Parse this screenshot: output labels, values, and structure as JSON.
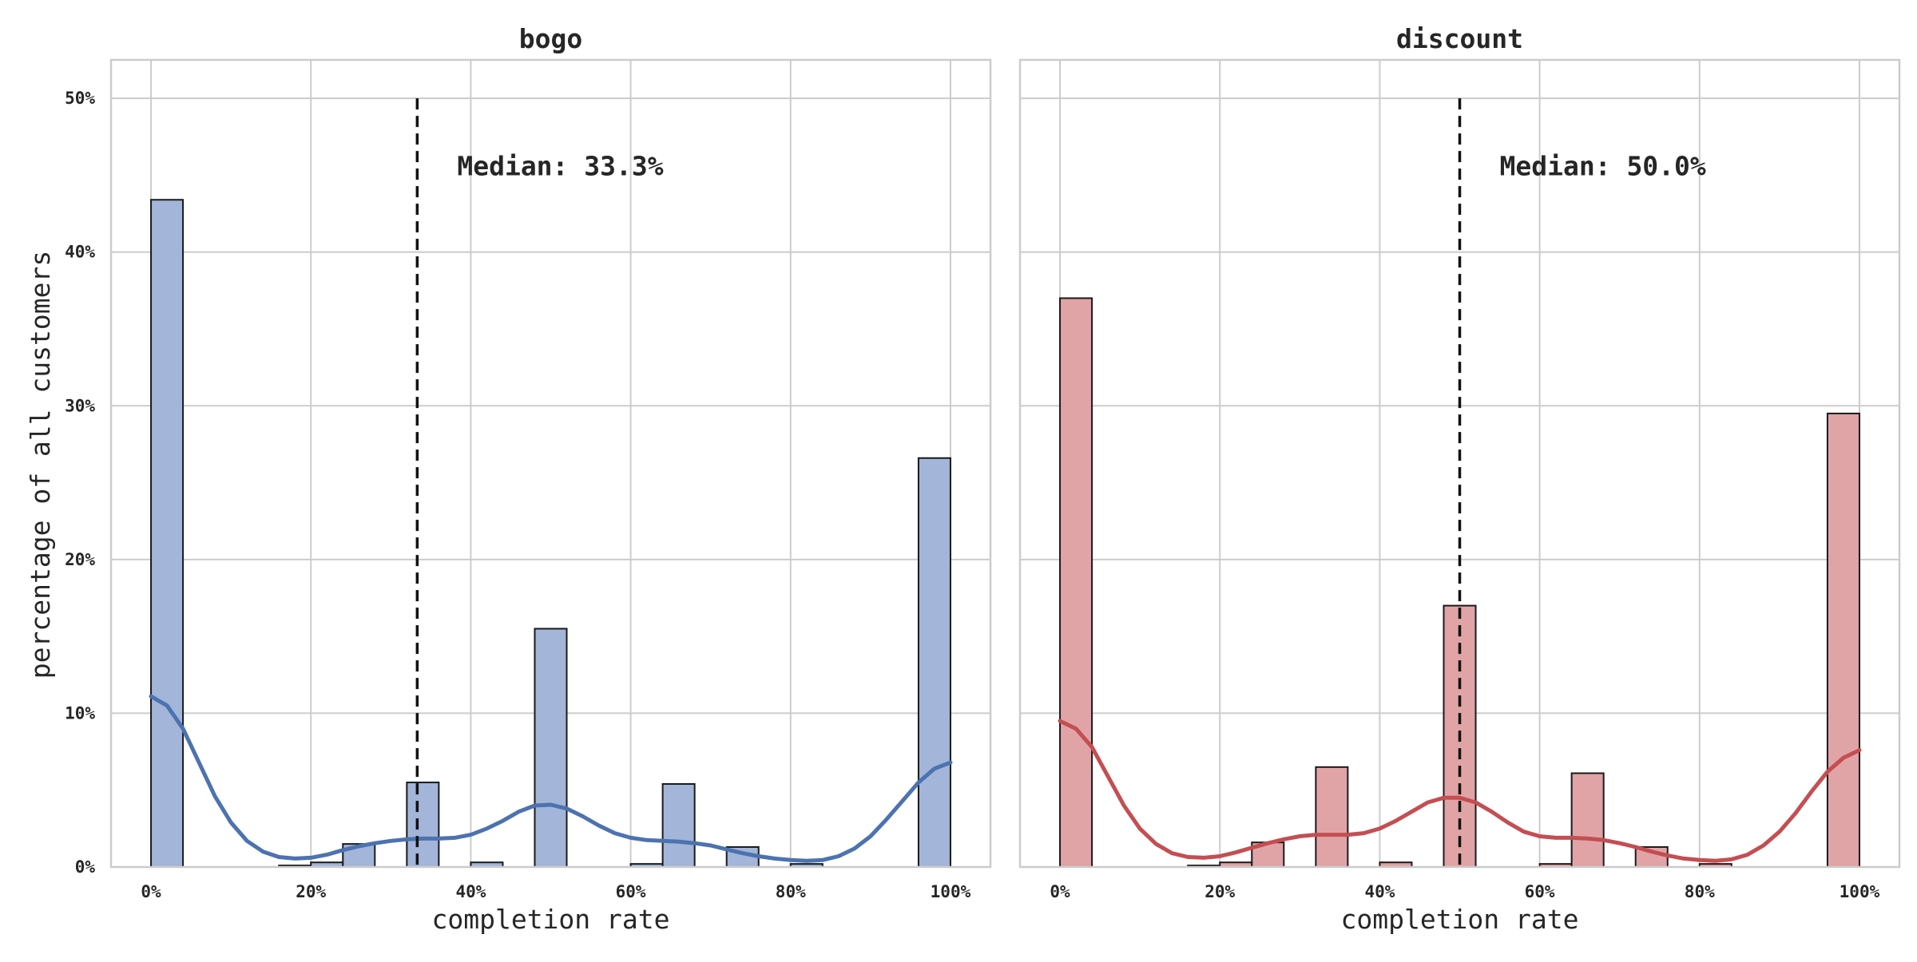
{
  "figure": {
    "ylabel": "percentage of all customers"
  },
  "chart_data": [
    {
      "type": "bar",
      "title": "bogo",
      "xlabel": "completion rate",
      "ylabel": "percentage of all customers",
      "xlim": [
        -5,
        105
      ],
      "ylim": [
        0,
        52.5
      ],
      "xticks": [
        0,
        20,
        40,
        60,
        80,
        100
      ],
      "xtick_labels": [
        "0%",
        "20%",
        "40%",
        "60%",
        "80%",
        "100%"
      ],
      "yticks": [
        0,
        10,
        20,
        30,
        40,
        50
      ],
      "ytick_labels": [
        "0%",
        "10%",
        "20%",
        "30%",
        "40%",
        "50%"
      ],
      "grid": true,
      "bin_width": 4,
      "bar_color": "#a3b5d8",
      "edge_color": "#1a1a1a",
      "bins": [
        {
          "x0": 0,
          "x1": 4,
          "value": 43.4
        },
        {
          "x0": 16,
          "x1": 20,
          "value": 0.1
        },
        {
          "x0": 20,
          "x1": 24,
          "value": 0.3
        },
        {
          "x0": 24,
          "x1": 28,
          "value": 1.5
        },
        {
          "x0": 32,
          "x1": 36,
          "value": 5.5
        },
        {
          "x0": 40,
          "x1": 44,
          "value": 0.3
        },
        {
          "x0": 48,
          "x1": 52,
          "value": 15.5
        },
        {
          "x0": 60,
          "x1": 64,
          "value": 0.2
        },
        {
          "x0": 64,
          "x1": 68,
          "value": 5.4
        },
        {
          "x0": 72,
          "x1": 76,
          "value": 1.3
        },
        {
          "x0": 80,
          "x1": 84,
          "value": 0.2
        },
        {
          "x0": 96,
          "x1": 100,
          "value": 26.6
        }
      ],
      "kde": {
        "color": "#4c72b0",
        "x": [
          0,
          2,
          4,
          6,
          8,
          10,
          12,
          14,
          16,
          18,
          20,
          22,
          24,
          26,
          28,
          30,
          32,
          34,
          36,
          38,
          40,
          42,
          44,
          46,
          48,
          50,
          52,
          54,
          56,
          58,
          60,
          62,
          64,
          66,
          68,
          70,
          72,
          74,
          76,
          78,
          80,
          82,
          84,
          86,
          88,
          90,
          92,
          94,
          96,
          98,
          100
        ],
        "y": [
          11.1,
          10.5,
          9.0,
          6.8,
          4.6,
          2.9,
          1.7,
          1.0,
          0.65,
          0.55,
          0.6,
          0.8,
          1.1,
          1.35,
          1.55,
          1.7,
          1.8,
          1.85,
          1.85,
          1.9,
          2.1,
          2.5,
          3.0,
          3.6,
          4.0,
          4.05,
          3.8,
          3.3,
          2.7,
          2.2,
          1.9,
          1.75,
          1.7,
          1.65,
          1.55,
          1.4,
          1.15,
          0.9,
          0.7,
          0.55,
          0.45,
          0.4,
          0.45,
          0.7,
          1.2,
          2.0,
          3.1,
          4.3,
          5.5,
          6.4,
          6.8
        ]
      },
      "median": {
        "value": 33.3,
        "label": "Median: 33.3%",
        "line_top": 50
      }
    },
    {
      "type": "bar",
      "title": "discount",
      "xlabel": "completion rate",
      "ylabel": "",
      "xlim": [
        -5,
        105
      ],
      "ylim": [
        0,
        52.5
      ],
      "xticks": [
        0,
        20,
        40,
        60,
        80,
        100
      ],
      "xtick_labels": [
        "0%",
        "20%",
        "40%",
        "60%",
        "80%",
        "100%"
      ],
      "yticks": [
        0,
        10,
        20,
        30,
        40,
        50
      ],
      "grid": true,
      "bin_width": 4,
      "bar_color": "#e0a4a6",
      "edge_color": "#1a1a1a",
      "bins": [
        {
          "x0": 0,
          "x1": 4,
          "value": 37.0
        },
        {
          "x0": 16,
          "x1": 20,
          "value": 0.1
        },
        {
          "x0": 20,
          "x1": 24,
          "value": 0.3
        },
        {
          "x0": 24,
          "x1": 28,
          "value": 1.6
        },
        {
          "x0": 32,
          "x1": 36,
          "value": 6.5
        },
        {
          "x0": 40,
          "x1": 44,
          "value": 0.3
        },
        {
          "x0": 48,
          "x1": 52,
          "value": 17.0
        },
        {
          "x0": 60,
          "x1": 64,
          "value": 0.2
        },
        {
          "x0": 64,
          "x1": 68,
          "value": 6.1
        },
        {
          "x0": 72,
          "x1": 76,
          "value": 1.3
        },
        {
          "x0": 80,
          "x1": 84,
          "value": 0.2
        },
        {
          "x0": 96,
          "x1": 100,
          "value": 29.5
        }
      ],
      "kde": {
        "color": "#c44e52",
        "x": [
          0,
          2,
          4,
          6,
          8,
          10,
          12,
          14,
          16,
          18,
          20,
          22,
          24,
          26,
          28,
          30,
          32,
          34,
          36,
          38,
          40,
          42,
          44,
          46,
          48,
          50,
          52,
          54,
          56,
          58,
          60,
          62,
          64,
          66,
          68,
          70,
          72,
          74,
          76,
          78,
          80,
          82,
          84,
          86,
          88,
          90,
          92,
          94,
          96,
          98,
          100
        ],
        "y": [
          9.5,
          9.0,
          7.8,
          5.9,
          4.0,
          2.5,
          1.5,
          0.9,
          0.65,
          0.6,
          0.7,
          0.95,
          1.25,
          1.55,
          1.8,
          2.0,
          2.1,
          2.1,
          2.1,
          2.2,
          2.5,
          3.0,
          3.6,
          4.2,
          4.5,
          4.5,
          4.2,
          3.6,
          2.9,
          2.3,
          2.0,
          1.9,
          1.9,
          1.85,
          1.75,
          1.55,
          1.3,
          1.0,
          0.75,
          0.55,
          0.45,
          0.4,
          0.5,
          0.8,
          1.4,
          2.3,
          3.5,
          4.9,
          6.2,
          7.1,
          7.6
        ]
      },
      "median": {
        "value": 50.0,
        "label": "Median: 50.0%",
        "line_top": 50
      }
    }
  ]
}
